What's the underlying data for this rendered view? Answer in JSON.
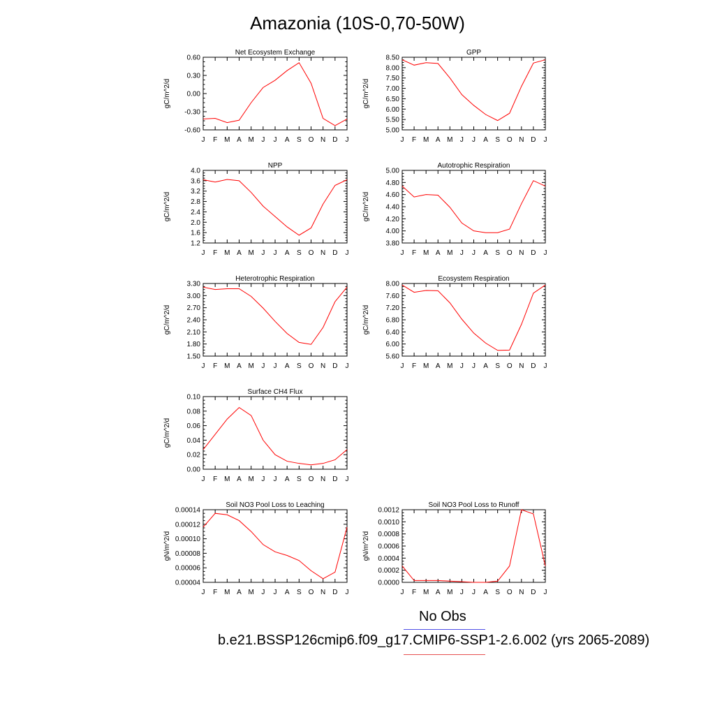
{
  "title": "Amazonia (10S-0,70-50W)",
  "legend": {
    "obs_label": "No Obs",
    "obs_color": "#5050e6",
    "case_label": "b.e21.BSSP126cmip6.f09_g17.CMIP6-SSP1-2.6.002 (yrs 2065-2089)",
    "case_color": "#e65050"
  },
  "months": [
    "J",
    "F",
    "M",
    "A",
    "M",
    "J",
    "J",
    "A",
    "S",
    "O",
    "N",
    "D",
    "J"
  ],
  "chart_data": [
    {
      "type": "line",
      "title": "Net Ecosystem Exchange",
      "ylabel": "gC/m^2/d",
      "ylim": [
        -0.6,
        0.6
      ],
      "yticks": [
        -0.6,
        -0.3,
        0.0,
        0.3,
        0.6
      ],
      "ytick_labels": [
        "-0.60",
        "-0.30",
        "0.00",
        "0.30",
        "0.60"
      ],
      "series": [
        {
          "color": "#ff0000",
          "values": [
            -0.42,
            -0.41,
            -0.48,
            -0.44,
            -0.15,
            0.1,
            0.22,
            0.38,
            0.51,
            0.17,
            -0.41,
            -0.53,
            -0.42
          ]
        }
      ]
    },
    {
      "type": "line",
      "title": "GPP",
      "ylabel": "gC/m^2/d",
      "ylim": [
        5.0,
        8.5
      ],
      "yticks": [
        5.0,
        5.5,
        6.0,
        6.5,
        7.0,
        7.5,
        8.0,
        8.5
      ],
      "ytick_labels": [
        "5.00",
        "5.50",
        "6.00",
        "6.50",
        "7.00",
        "7.50",
        "8.00",
        "8.50"
      ],
      "series": [
        {
          "color": "#ff0000",
          "values": [
            8.38,
            8.12,
            8.24,
            8.2,
            7.5,
            6.7,
            6.18,
            5.74,
            5.45,
            5.8,
            7.1,
            8.22,
            8.38
          ]
        }
      ]
    },
    {
      "type": "line",
      "title": "NPP",
      "ylabel": "gC/m^2/d",
      "ylim": [
        1.2,
        4.0
      ],
      "yticks": [
        1.2,
        1.6,
        2.0,
        2.4,
        2.8,
        3.2,
        3.6,
        4.0
      ],
      "ytick_labels": [
        "1.2",
        "1.6",
        "2.0",
        "2.4",
        "2.8",
        "3.2",
        "3.6",
        "4.0"
      ],
      "series": [
        {
          "color": "#ff0000",
          "values": [
            3.64,
            3.55,
            3.65,
            3.6,
            3.15,
            2.62,
            2.22,
            1.82,
            1.5,
            1.78,
            2.7,
            3.42,
            3.64
          ]
        }
      ]
    },
    {
      "type": "line",
      "title": "Autotrophic Respiration",
      "ylabel": "gC/m^2/d",
      "ylim": [
        3.8,
        5.0
      ],
      "yticks": [
        3.8,
        4.0,
        4.2,
        4.4,
        4.6,
        4.8,
        5.0
      ],
      "ytick_labels": [
        "3.80",
        "4.00",
        "4.20",
        "4.40",
        "4.60",
        "4.80",
        "5.00"
      ],
      "series": [
        {
          "color": "#ff0000",
          "values": [
            4.74,
            4.56,
            4.6,
            4.59,
            4.39,
            4.13,
            4.0,
            3.97,
            3.97,
            4.03,
            4.45,
            4.83,
            4.74
          ]
        }
      ]
    },
    {
      "type": "line",
      "title": "Heterotrophic Respiration",
      "ylabel": "gC/m^2/d",
      "ylim": [
        1.5,
        3.3
      ],
      "yticks": [
        1.5,
        1.8,
        2.1,
        2.4,
        2.7,
        3.0,
        3.3
      ],
      "ytick_labels": [
        "1.50",
        "1.80",
        "2.10",
        "2.40",
        "2.70",
        "3.00",
        "3.30"
      ],
      "series": [
        {
          "color": "#ff0000",
          "values": [
            3.21,
            3.15,
            3.17,
            3.17,
            2.98,
            2.69,
            2.36,
            2.06,
            1.84,
            1.79,
            2.21,
            2.85,
            3.21
          ]
        }
      ]
    },
    {
      "type": "line",
      "title": "Ecosystem Respiration",
      "ylabel": "gC/m^2/d",
      "ylim": [
        5.6,
        8.0
      ],
      "yticks": [
        5.6,
        6.0,
        6.4,
        6.8,
        7.2,
        7.6,
        8.0
      ],
      "ytick_labels": [
        "5.60",
        "6.00",
        "6.40",
        "6.80",
        "7.20",
        "7.60",
        "8.00"
      ],
      "series": [
        {
          "color": "#ff0000",
          "values": [
            7.95,
            7.71,
            7.77,
            7.76,
            7.36,
            6.82,
            6.36,
            6.03,
            5.79,
            5.8,
            6.65,
            7.68,
            7.95
          ]
        }
      ]
    },
    {
      "type": "line",
      "title": "Surface CH4 Flux",
      "ylabel": "gC/m^2/d",
      "ylim": [
        0.0,
        0.1
      ],
      "yticks": [
        0.0,
        0.02,
        0.04,
        0.06,
        0.08,
        0.1
      ],
      "ytick_labels": [
        "0.00",
        "0.02",
        "0.04",
        "0.06",
        "0.08",
        "0.10"
      ],
      "series": [
        {
          "color": "#ff0000",
          "values": [
            0.027,
            0.048,
            0.069,
            0.085,
            0.074,
            0.04,
            0.02,
            0.011,
            0.008,
            0.006,
            0.008,
            0.013,
            0.027
          ]
        }
      ]
    },
    {
      "type": "line",
      "title": "Soil NO3 Pool Loss to Leaching",
      "ylabel": "gN/m^2/d",
      "ylim": [
        4e-05,
        0.00014
      ],
      "yticks": [
        4e-05,
        6e-05,
        8e-05,
        0.0001,
        0.00012,
        0.00014
      ],
      "ytick_labels": [
        "0.00004",
        "0.00006",
        "0.00008",
        "0.00010",
        "0.00012",
        "0.00014"
      ],
      "series": [
        {
          "color": "#ff0000",
          "values": [
            0.000116,
            0.000135,
            0.000133,
            0.000125,
            0.00011,
            9.2e-05,
            8.2e-05,
            7.7e-05,
            7e-05,
            5.6e-05,
            4.5e-05,
            5.4e-05,
            0.000116
          ]
        }
      ]
    },
    {
      "type": "line",
      "title": "Soil NO3 Pool Loss to Runoff",
      "ylabel": "gN/m^2/d",
      "ylim": [
        0.0,
        0.0012
      ],
      "yticks": [
        0.0,
        0.0002,
        0.0004,
        0.0006,
        0.0008,
        0.001,
        0.0012
      ],
      "ytick_labels": [
        "0.0000",
        "0.0002",
        "0.0004",
        "0.0006",
        "0.0008",
        "0.0010",
        "0.0012"
      ],
      "series": [
        {
          "color": "#ff0000",
          "values": [
            0.00027,
            3e-05,
            3e-05,
            3e-05,
            2e-05,
            1e-05,
            0.0,
            0.0,
            2e-05,
            0.00027,
            0.0012,
            0.00113,
            0.00027
          ]
        }
      ]
    }
  ]
}
